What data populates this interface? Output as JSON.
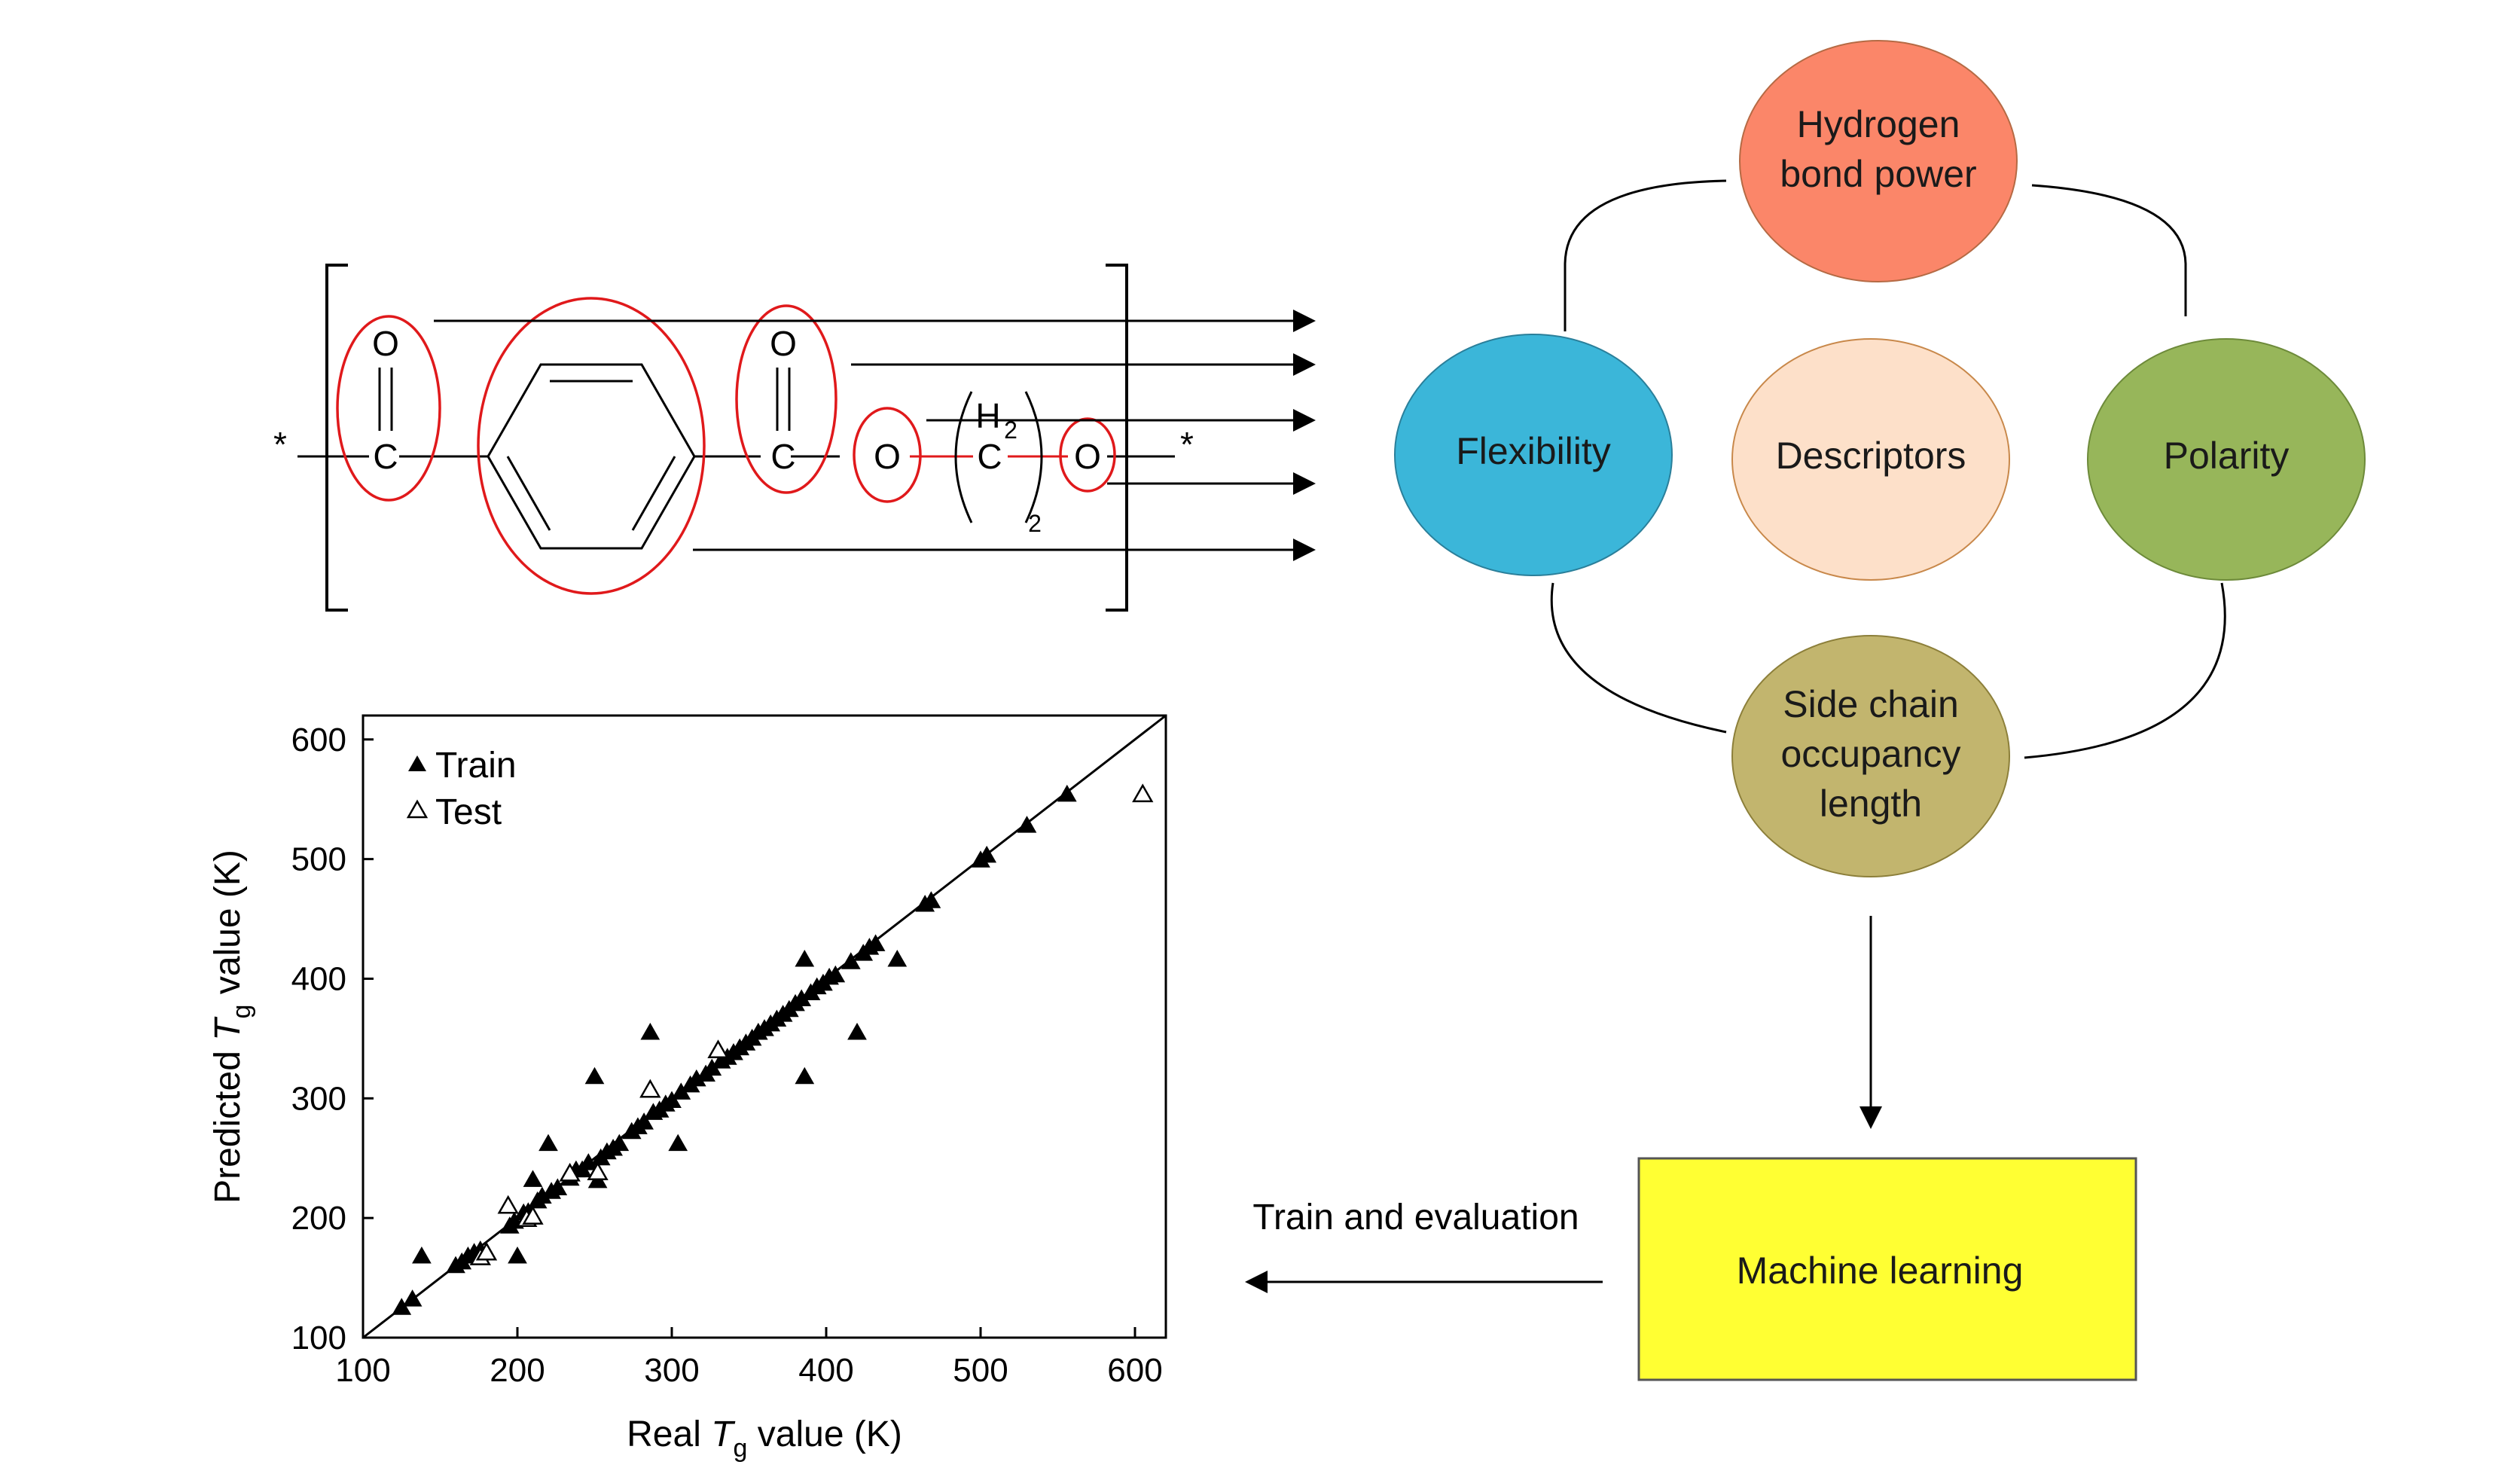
{
  "molecule": {
    "atoms": {
      "o1": "O",
      "c1": "C",
      "o2": "O",
      "c2": "C",
      "o3": "O",
      "h2": "H",
      "h2sub": "2",
      "c3": "C",
      "sub2": "2",
      "o4": "O",
      "star_left": "*",
      "star_right": "*"
    }
  },
  "descriptors": {
    "center": "Descriptors",
    "top_line1": "Hydrogen",
    "top_line2": "bond power",
    "left": "Flexibility",
    "right": "Polarity",
    "bottom_line1": "Side chain",
    "bottom_line2": "occupancy",
    "bottom_line3": "length",
    "colors": {
      "hydrogen": "#fb8669",
      "flexibility": "#3bb6d9",
      "descriptors": "#fde0c9",
      "polarity": "#97b65a",
      "side_chain": "#c2b56e"
    }
  },
  "ml": {
    "box_label": "Machine learning",
    "arrow_label": "Train and evaluation",
    "box_color": "#ffff33"
  },
  "chart_data": {
    "type": "scatter",
    "xlabel_pre": "Real ",
    "xlabel_var": "T",
    "xlabel_sub": "g",
    "xlabel_post": " value (K)",
    "ylabel_pre": "Predicted ",
    "ylabel_var": "T",
    "ylabel_sub": "g",
    "ylabel_post": " value (K)",
    "xlim": [
      100,
      620
    ],
    "ylim": [
      100,
      620
    ],
    "xticks": [
      "100",
      "200",
      "300",
      "400",
      "500",
      "600"
    ],
    "yticks": [
      "100",
      "200",
      "300",
      "400",
      "500",
      "600"
    ],
    "legend_position": "top-left",
    "diagonal": true,
    "series": [
      {
        "name": "Train",
        "marker": "filled-triangle",
        "points": [
          [
            125,
            125
          ],
          [
            132,
            132
          ],
          [
            138,
            168
          ],
          [
            160,
            160
          ],
          [
            164,
            163
          ],
          [
            168,
            168
          ],
          [
            172,
            171
          ],
          [
            176,
            173
          ],
          [
            195,
            193
          ],
          [
            198,
            197
          ],
          [
            200,
            168
          ],
          [
            204,
            204
          ],
          [
            207,
            205
          ],
          [
            210,
            232
          ],
          [
            213,
            214
          ],
          [
            216,
            218
          ],
          [
            220,
            262
          ],
          [
            222,
            222
          ],
          [
            226,
            225
          ],
          [
            234,
            233
          ],
          [
            238,
            240
          ],
          [
            242,
            240
          ],
          [
            246,
            246
          ],
          [
            250,
            318
          ],
          [
            252,
            231
          ],
          [
            254,
            250
          ],
          [
            258,
            255
          ],
          [
            262,
            258
          ],
          [
            266,
            262
          ],
          [
            274,
            272
          ],
          [
            278,
            276
          ],
          [
            282,
            280
          ],
          [
            286,
            355
          ],
          [
            288,
            288
          ],
          [
            292,
            290
          ],
          [
            296,
            295
          ],
          [
            300,
            298
          ],
          [
            304,
            262
          ],
          [
            306,
            305
          ],
          [
            312,
            311
          ],
          [
            316,
            316
          ],
          [
            322,
            320
          ],
          [
            326,
            325
          ],
          [
            332,
            331
          ],
          [
            336,
            334
          ],
          [
            340,
            338
          ],
          [
            344,
            342
          ],
          [
            348,
            346
          ],
          [
            352,
            350
          ],
          [
            356,
            355
          ],
          [
            360,
            358
          ],
          [
            364,
            362
          ],
          [
            368,
            366
          ],
          [
            372,
            370
          ],
          [
            376,
            374
          ],
          [
            380,
            379
          ],
          [
            384,
            383
          ],
          [
            386,
            318
          ],
          [
            386,
            416
          ],
          [
            390,
            388
          ],
          [
            394,
            393
          ],
          [
            398,
            396
          ],
          [
            402,
            401
          ],
          [
            406,
            403
          ],
          [
            416,
            414
          ],
          [
            420,
            355
          ],
          [
            424,
            421
          ],
          [
            428,
            426
          ],
          [
            432,
            429
          ],
          [
            446,
            416
          ],
          [
            464,
            462
          ],
          [
            468,
            465
          ],
          [
            500,
            499
          ],
          [
            504,
            503
          ],
          [
            530,
            528
          ],
          [
            556,
            554
          ]
        ]
      },
      {
        "name": "Test",
        "marker": "open-triangle",
        "points": [
          [
            176,
            167
          ],
          [
            180,
            171
          ],
          [
            194,
            210
          ],
          [
            206,
            199
          ],
          [
            210,
            201
          ],
          [
            234,
            237
          ],
          [
            252,
            238
          ],
          [
            286,
            307
          ],
          [
            330,
            340
          ],
          [
            605,
            554
          ]
        ]
      }
    ]
  }
}
